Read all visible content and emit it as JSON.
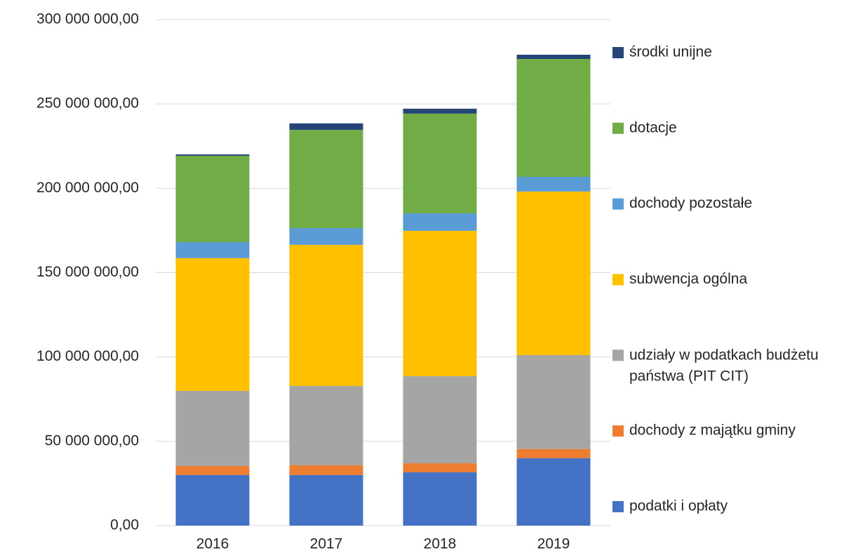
{
  "chart_data": {
    "type": "stacked_bar",
    "categories": [
      "2016",
      "2017",
      "2018",
      "2019"
    ],
    "series": [
      {
        "name": "podatki i opłaty",
        "color": "#4472c4",
        "values": [
          30000000,
          30000000,
          31600000,
          40000000
        ]
      },
      {
        "name": "dochody z majątku gminy",
        "color": "#ed7d31",
        "values": [
          5400000,
          5800000,
          5400000,
          5400000
        ]
      },
      {
        "name": "udziały w podatkach budżetu państwa (PIT CIT)",
        "color": "#a5a5a5",
        "values": [
          44500000,
          47000000,
          51600000,
          55700000
        ]
      },
      {
        "name": "subwencja ogólna",
        "color": "#ffc000",
        "values": [
          78700000,
          83700000,
          86200000,
          97000000
        ]
      },
      {
        "name": "dochody pozostałe",
        "color": "#5b9bd5",
        "values": [
          9500000,
          9900000,
          10400000,
          8700000
        ]
      },
      {
        "name": "dotacje",
        "color": "#70ad47",
        "values": [
          51200000,
          58300000,
          59100000,
          69900000
        ]
      },
      {
        "name": "środki unijne",
        "color": "#264478",
        "values": [
          800000,
          3800000,
          2900000,
          2500000
        ]
      }
    ],
    "ylim": [
      0,
      300000000
    ],
    "yticks": [
      {
        "value": 0,
        "label": "0,00"
      },
      {
        "value": 50000000,
        "label": "50 000 000,00"
      },
      {
        "value": 100000000,
        "label": "100 000 000,00"
      },
      {
        "value": 150000000,
        "label": "150 000 000,00"
      },
      {
        "value": 200000000,
        "label": "200 000 000,00"
      },
      {
        "value": 250000000,
        "label": "250 000 000,00"
      },
      {
        "value": 300000000,
        "label": "300 000 000,00"
      }
    ],
    "grid": true,
    "legend": "right"
  }
}
